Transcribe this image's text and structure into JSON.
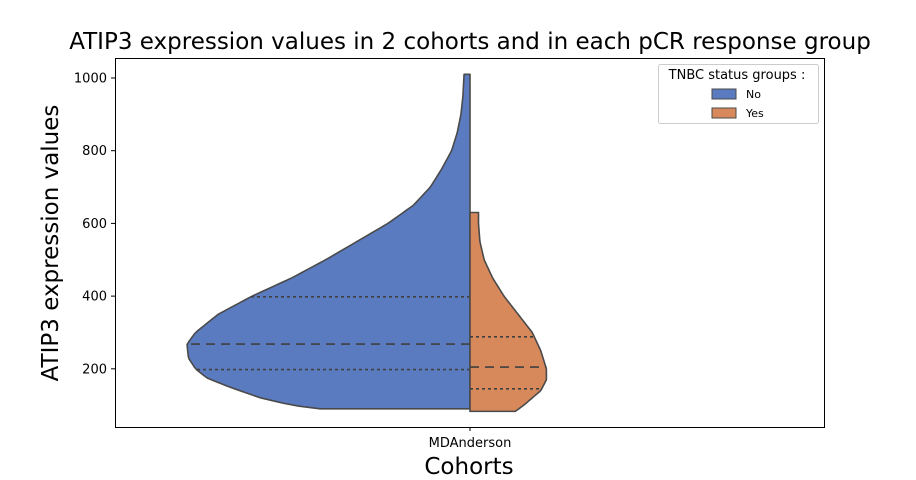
{
  "chart_data": {
    "type": "violin",
    "title": "ATIP3 expression values in 2 cohorts and in each pCR response group",
    "xlabel": "Cohorts",
    "ylabel": "ATIP3 expression values",
    "categories": [
      "MDAnderson"
    ],
    "yticks": [
      200,
      400,
      600,
      800,
      1000
    ],
    "ylim": [
      40,
      1055
    ],
    "legend": {
      "title": "TNBC status groups :",
      "position": "top-right",
      "entries": [
        "No",
        "Yes"
      ]
    },
    "series": [
      {
        "name": "No",
        "color": "#5a7bc0",
        "side": "left",
        "min": 90,
        "max": 1010,
        "quartiles": [
          198,
          268,
          398
        ],
        "profile": [
          [
            90,
            0.53
          ],
          [
            100,
            0.63
          ],
          [
            120,
            0.74
          ],
          [
            150,
            0.85
          ],
          [
            175,
            0.93
          ],
          [
            200,
            0.97
          ],
          [
            230,
            0.995
          ],
          [
            268,
            1.0
          ],
          [
            300,
            0.97
          ],
          [
            350,
            0.89
          ],
          [
            400,
            0.77
          ],
          [
            450,
            0.63
          ],
          [
            500,
            0.51
          ],
          [
            550,
            0.4
          ],
          [
            600,
            0.29
          ],
          [
            650,
            0.2
          ],
          [
            700,
            0.14
          ],
          [
            750,
            0.1
          ],
          [
            800,
            0.065
          ],
          [
            850,
            0.045
          ],
          [
            900,
            0.032
          ],
          [
            950,
            0.025
          ],
          [
            1010,
            0.021
          ]
        ]
      },
      {
        "name": "Yes",
        "color": "#d8895c",
        "side": "right",
        "min": 83,
        "max": 630,
        "quartiles": [
          145,
          205,
          288
        ],
        "profile": [
          [
            83,
            0.16
          ],
          [
            100,
            0.19
          ],
          [
            140,
            0.25
          ],
          [
            170,
            0.27
          ],
          [
            200,
            0.27
          ],
          [
            250,
            0.25
          ],
          [
            300,
            0.22
          ],
          [
            350,
            0.17
          ],
          [
            400,
            0.12
          ],
          [
            450,
            0.08
          ],
          [
            500,
            0.05
          ],
          [
            550,
            0.035
          ],
          [
            600,
            0.03
          ],
          [
            630,
            0.03
          ]
        ]
      }
    ]
  },
  "colors": {
    "frame": "#000000",
    "outline": "#4a4a4a",
    "quartile_line": "#404040"
  }
}
